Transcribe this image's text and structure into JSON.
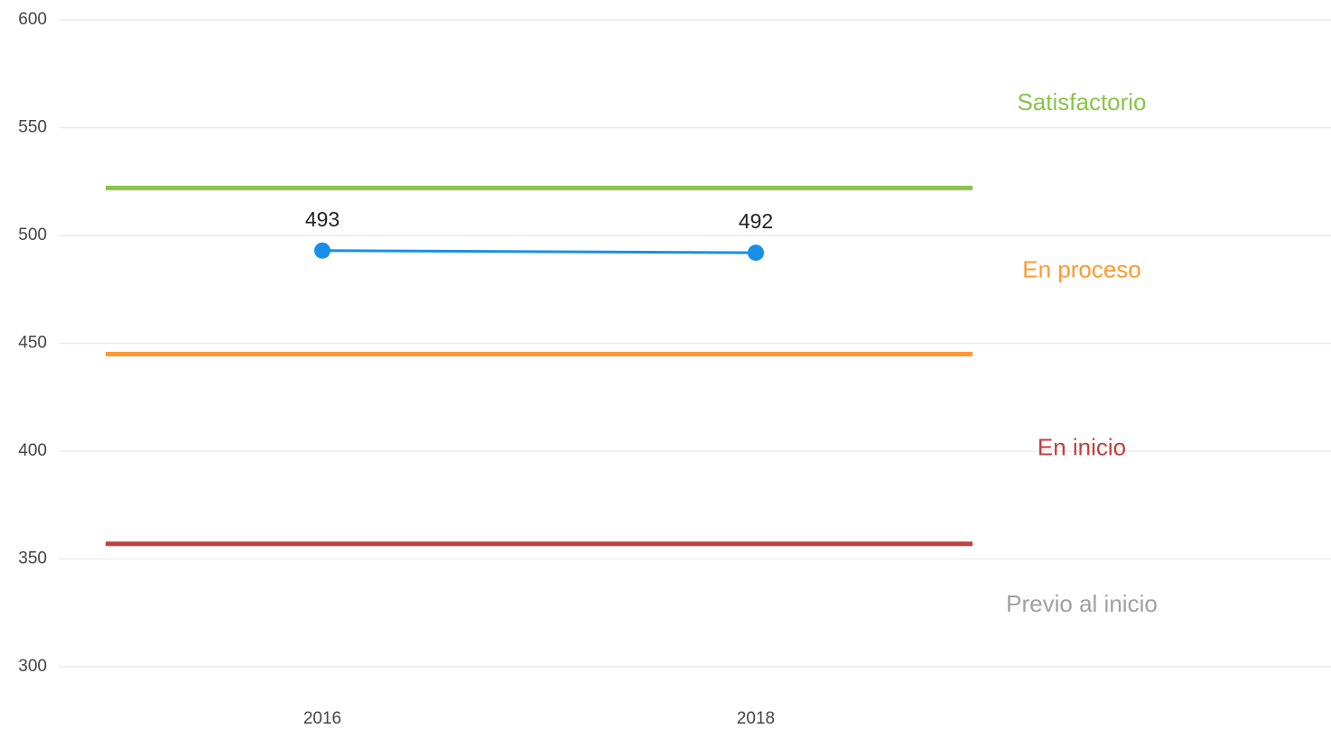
{
  "chart_data": {
    "type": "line",
    "categories": [
      "2016",
      "2018"
    ],
    "values": [
      493,
      492
    ],
    "color": "#1a8fe8",
    "ylim": [
      300,
      600
    ],
    "yticks": [
      300,
      350,
      400,
      450,
      500,
      550,
      600
    ],
    "grid": true,
    "levels": [
      {
        "name": "Satisfactorio",
        "color": "#8bc34a",
        "min": 522
      },
      {
        "name": "En proceso",
        "color": "#ff9933",
        "min": 445
      },
      {
        "name": "En inicio",
        "color": "#c0403f",
        "min": 357
      },
      {
        "name": "Previo al inicio",
        "color": "#a0a0a0"
      }
    ]
  }
}
